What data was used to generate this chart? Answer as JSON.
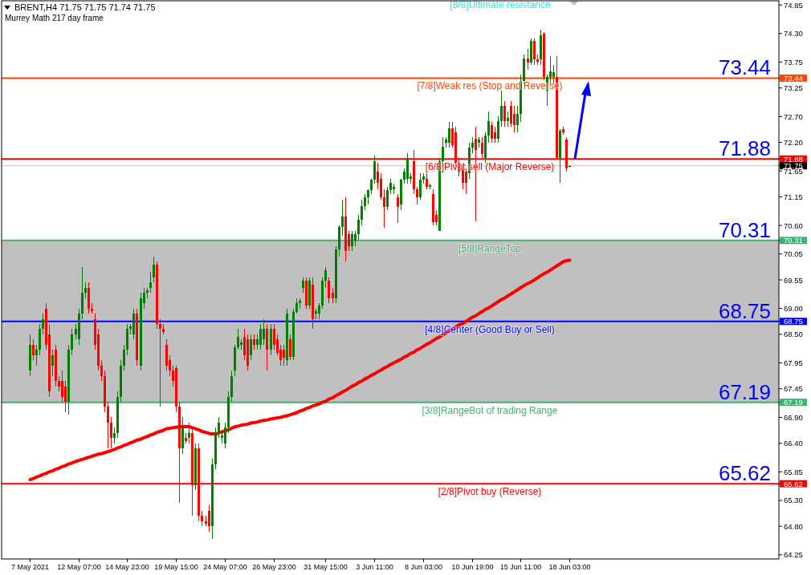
{
  "chart_data": {
    "type": "candlestick",
    "title": "BRENT,H4 71.75 71.75 71.74 71.75",
    "subtitle": "Murrey Math 217 day frame",
    "categories": [
      "7 May 2021",
      null,
      null,
      null,
      null,
      null,
      null,
      null,
      null,
      null,
      null,
      null,
      null,
      null,
      null,
      "12 May 07:00",
      null,
      null,
      null,
      null,
      null,
      null,
      null,
      null,
      null,
      null,
      null,
      null,
      null,
      null,
      "14 May 23:00",
      null,
      null,
      null,
      null,
      null,
      null,
      null,
      null,
      null,
      null,
      null,
      null,
      null,
      null,
      "19 May 15:00",
      null,
      null,
      null,
      null,
      null,
      null,
      null,
      null,
      null,
      null,
      null,
      null,
      null,
      null,
      "24 May 07:00",
      null,
      null,
      null,
      null,
      null,
      null,
      null,
      null,
      null,
      null,
      null,
      null,
      null,
      null,
      "26 May 23:00",
      null,
      null,
      null,
      null,
      null,
      null,
      null,
      null,
      null,
      null,
      null,
      null,
      null,
      null,
      null,
      "31 May 15:00",
      null,
      null,
      null,
      null,
      null,
      null,
      null,
      null,
      null,
      null,
      null,
      null,
      null,
      null,
      "3 Jun 11:00",
      null,
      null,
      null,
      null,
      null,
      null,
      null,
      null,
      null,
      null,
      null,
      null,
      null,
      null,
      "8 Jun 03:00",
      null,
      null,
      null,
      null,
      null,
      null,
      null,
      null,
      null,
      null,
      null,
      null,
      null,
      null,
      "10 Jun 19:00",
      null,
      null,
      null,
      null,
      null,
      null,
      null,
      null,
      null,
      null,
      null,
      null,
      null,
      null,
      "15 Jun 11:00",
      null,
      null,
      null,
      null,
      null,
      null,
      null,
      null,
      null,
      null,
      null,
      null,
      null,
      null,
      "18 Jun 03:00"
    ],
    "ohlc": [
      [
        67.8,
        68.5,
        67.7,
        68.3
      ],
      [
        68.3,
        68.4,
        68.0,
        68.1
      ],
      [
        68.1,
        68.3,
        67.9,
        68.2
      ],
      [
        68.2,
        68.7,
        68.1,
        68.6
      ],
      [
        68.6,
        68.9,
        68.5,
        68.8
      ],
      [
        69.0,
        69.1,
        68.2,
        68.3
      ],
      [
        68.5,
        68.7,
        67.3,
        67.4
      ],
      [
        67.9,
        68.2,
        67.7,
        68.1
      ],
      [
        68.2,
        68.3,
        67.5,
        67.6
      ],
      [
        67.6,
        67.7,
        67.4,
        67.5
      ],
      [
        67.6,
        67.8,
        67.2,
        67.3
      ],
      [
        67.5,
        67.6,
        67.0,
        67.2
      ],
      [
        67.2,
        68.3,
        66.95,
        68.2
      ],
      [
        68.2,
        68.6,
        68.1,
        68.5
      ],
      [
        68.5,
        68.7,
        68.4,
        68.6
      ],
      [
        68.4,
        69.0,
        68.3,
        68.9
      ],
      [
        68.9,
        69.8,
        68.8,
        69.3
      ],
      [
        69.3,
        69.5,
        69.2,
        69.4
      ],
      [
        69.4,
        69.5,
        68.9,
        69.0
      ],
      [
        69.0,
        69.1,
        68.9,
        68.95
      ],
      [
        68.8,
        68.9,
        68.2,
        68.3
      ],
      [
        68.5,
        68.6,
        67.8,
        67.9
      ],
      [
        67.9,
        68.0,
        67.6,
        67.7
      ],
      [
        67.7,
        67.8,
        67.0,
        67.1
      ],
      [
        67.1,
        67.2,
        66.3,
        66.8
      ],
      [
        66.8,
        66.9,
        66.3,
        66.5
      ],
      [
        66.5,
        66.7,
        66.4,
        66.6
      ],
      [
        66.6,
        67.4,
        66.5,
        67.3
      ],
      [
        67.3,
        68.0,
        67.2,
        67.9
      ],
      [
        67.9,
        68.3,
        67.8,
        68.2
      ],
      [
        68.2,
        68.7,
        68.1,
        68.6
      ],
      [
        68.6,
        68.7,
        68.5,
        68.65
      ],
      [
        68.5,
        69.0,
        68.4,
        68.9
      ],
      [
        68.9,
        69.0,
        67.9,
        68.0
      ],
      [
        67.9,
        69.3,
        67.8,
        69.2
      ],
      [
        69.1,
        69.4,
        69.0,
        69.3
      ],
      [
        69.3,
        69.4,
        69.2,
        69.35
      ],
      [
        69.4,
        69.7,
        69.3,
        69.5
      ],
      [
        69.6,
        70.0,
        69.5,
        69.85
      ],
      [
        69.85,
        69.9,
        68.6,
        68.7
      ],
      [
        68.7,
        68.8,
        67.1,
        68.6
      ],
      [
        68.6,
        68.7,
        68.5,
        68.55
      ],
      [
        68.3,
        68.4,
        67.8,
        67.9
      ],
      [
        68.0,
        68.1,
        67.7,
        67.8
      ],
      [
        67.8,
        67.9,
        67.5,
        67.6
      ],
      [
        67.85,
        67.9,
        67.0,
        67.1
      ],
      [
        67.1,
        67.2,
        65.25,
        66.3
      ],
      [
        66.3,
        66.9,
        66.2,
        66.7
      ],
      [
        66.5,
        66.6,
        66.4,
        66.45
      ],
      [
        66.5,
        66.8,
        66.4,
        66.6
      ],
      [
        66.6,
        66.7,
        65.0,
        65.6
      ],
      [
        65.6,
        66.4,
        65.5,
        66.3
      ],
      [
        66.3,
        66.4,
        64.9,
        65.0
      ],
      [
        65.0,
        65.1,
        64.8,
        64.9
      ],
      [
        64.9,
        65.0,
        64.8,
        64.85
      ],
      [
        65.1,
        65.2,
        64.7,
        64.8
      ],
      [
        64.8,
        66.1,
        64.55,
        66.0
      ],
      [
        66.0,
        66.7,
        65.9,
        66.6
      ],
      [
        66.6,
        66.9,
        66.5,
        66.8
      ],
      [
        66.5,
        66.6,
        66.4,
        66.55
      ],
      [
        66.4,
        66.8,
        66.3,
        66.7
      ],
      [
        66.7,
        67.4,
        66.6,
        67.3
      ],
      [
        67.3,
        67.8,
        67.2,
        67.7
      ],
      [
        67.8,
        68.3,
        67.7,
        68.25
      ],
      [
        68.25,
        68.6,
        68.2,
        68.45
      ],
      [
        68.3,
        68.4,
        68.2,
        68.35
      ],
      [
        68.45,
        68.6,
        68.0,
        68.1
      ],
      [
        68.4,
        68.5,
        67.8,
        67.9
      ],
      [
        68.1,
        68.5,
        68.0,
        68.4
      ],
      [
        68.4,
        68.5,
        68.2,
        68.3
      ],
      [
        68.3,
        68.5,
        68.2,
        68.4
      ],
      [
        68.3,
        68.7,
        68.2,
        68.6
      ],
      [
        68.4,
        68.8,
        68.3,
        68.6
      ],
      [
        68.6,
        68.7,
        67.8,
        68.2
      ],
      [
        68.2,
        68.7,
        68.1,
        68.6
      ],
      [
        68.6,
        68.7,
        68.2,
        68.3
      ],
      [
        68.4,
        68.5,
        68.1,
        68.15
      ],
      [
        68.2,
        68.3,
        67.9,
        68.0
      ],
      [
        68.2,
        68.3,
        67.9,
        68.05
      ],
      [
        68.0,
        69.0,
        67.9,
        68.9
      ],
      [
        68.4,
        68.5,
        68.0,
        68.06
      ],
      [
        68.06,
        69.0,
        68.0,
        68.93
      ],
      [
        68.93,
        69.2,
        68.9,
        69.1
      ],
      [
        69.1,
        69.2,
        69.0,
        69.15
      ],
      [
        69.39,
        69.6,
        69.3,
        69.53
      ],
      [
        69.53,
        69.6,
        69.0,
        69.06
      ],
      [
        69.06,
        69.6,
        69.0,
        69.53
      ],
      [
        69.45,
        69.6,
        68.6,
        68.8
      ],
      [
        68.9,
        69.0,
        68.8,
        68.95
      ],
      [
        68.9,
        69.1,
        68.8,
        69.06
      ],
      [
        69.06,
        69.6,
        69.0,
        69.53
      ],
      [
        69.53,
        69.8,
        69.4,
        69.74
      ],
      [
        69.53,
        69.6,
        69.1,
        69.2
      ],
      [
        69.3,
        69.4,
        69.1,
        69.2
      ],
      [
        69.2,
        70.2,
        69.1,
        70.14
      ],
      [
        70.14,
        70.6,
        70.0,
        70.57
      ],
      [
        70.57,
        71.1,
        70.4,
        70.77
      ],
      [
        70.77,
        71.15,
        69.9,
        70.1
      ],
      [
        70.43,
        70.5,
        70.1,
        70.2
      ],
      [
        70.2,
        70.5,
        70.1,
        70.43
      ],
      [
        70.3,
        70.5,
        70.2,
        70.43
      ],
      [
        70.43,
        70.8,
        70.3,
        70.71
      ],
      [
        70.71,
        71.1,
        70.6,
        70.98
      ],
      [
        70.98,
        71.2,
        70.9,
        71.15
      ],
      [
        71.15,
        71.3,
        71.0,
        71.28
      ],
      [
        71.28,
        71.5,
        71.2,
        71.48
      ],
      [
        71.48,
        71.95,
        71.4,
        71.84
      ],
      [
        71.63,
        71.8,
        71.3,
        71.42
      ],
      [
        71.5,
        71.6,
        71.1,
        71.15
      ],
      [
        71.15,
        71.3,
        70.55,
        70.95
      ],
      [
        70.95,
        71.35,
        70.9,
        71.28
      ],
      [
        71.28,
        71.5,
        71.2,
        71.42
      ],
      [
        71.3,
        71.4,
        71.2,
        71.35
      ],
      [
        71.15,
        71.2,
        70.65,
        70.95
      ],
      [
        71.0,
        71.5,
        70.9,
        71.48
      ],
      [
        71.48,
        71.7,
        71.4,
        71.63
      ],
      [
        71.5,
        72.0,
        71.4,
        71.9
      ],
      [
        71.5,
        71.6,
        71.4,
        71.55
      ],
      [
        71.84,
        72.05,
        71.2,
        71.3
      ],
      [
        71.3,
        71.35,
        71.0,
        71.15
      ],
      [
        71.15,
        71.6,
        71.1,
        71.48
      ],
      [
        71.48,
        71.6,
        71.4,
        71.55
      ],
      [
        71.5,
        71.6,
        71.3,
        71.35
      ],
      [
        71.35,
        71.4,
        71.3,
        71.37
      ],
      [
        71.21,
        71.3,
        70.6,
        70.66
      ],
      [
        70.8,
        70.9,
        70.6,
        70.66
      ],
      [
        70.5,
        71.9,
        70.5,
        71.84
      ],
      [
        71.84,
        72.3,
        71.8,
        72.12
      ],
      [
        72.2,
        72.3,
        72.1,
        72.25
      ],
      [
        72.19,
        72.6,
        72.1,
        72.47
      ],
      [
        72.47,
        72.6,
        72.1,
        72.15
      ],
      [
        72.4,
        72.5,
        71.7,
        71.8
      ],
      [
        71.8,
        71.9,
        71.55,
        71.63
      ],
      [
        71.7,
        71.8,
        71.3,
        71.42
      ],
      [
        71.63,
        71.7,
        71.2,
        71.42
      ],
      [
        71.6,
        72.2,
        71.5,
        72.1
      ],
      [
        72.1,
        72.3,
        72.0,
        72.2
      ],
      [
        72.27,
        72.5,
        70.68,
        72.06
      ],
      [
        72.2,
        72.3,
        72.1,
        72.25
      ],
      [
        72.2,
        72.3,
        71.9,
        71.98
      ],
      [
        71.9,
        72.4,
        71.8,
        72.33
      ],
      [
        72.33,
        72.8,
        72.2,
        72.61
      ],
      [
        72.54,
        72.6,
        72.2,
        72.27
      ],
      [
        72.4,
        72.5,
        72.2,
        72.27
      ],
      [
        72.27,
        72.7,
        72.2,
        72.61
      ],
      [
        72.61,
        73.2,
        72.5,
        72.9
      ],
      [
        72.9,
        73.0,
        72.5,
        72.61
      ],
      [
        72.61,
        72.8,
        72.5,
        72.68
      ],
      [
        72.9,
        73.0,
        72.5,
        72.57
      ],
      [
        72.75,
        72.9,
        72.4,
        72.54
      ],
      [
        72.54,
        72.9,
        72.4,
        72.75
      ],
      [
        72.75,
        73.5,
        72.6,
        73.39
      ],
      [
        73.39,
        73.9,
        73.3,
        73.81
      ],
      [
        73.81,
        74.0,
        73.6,
        73.74
      ],
      [
        73.74,
        74.2,
        73.7,
        74.16
      ],
      [
        74.16,
        74.2,
        73.7,
        73.8
      ],
      [
        73.8,
        73.9,
        73.7,
        73.75
      ],
      [
        73.8,
        74.37,
        73.7,
        74.26
      ],
      [
        74.29,
        74.33,
        73.4,
        73.46
      ],
      [
        73.2,
        73.5,
        72.9,
        73.46
      ],
      [
        73.46,
        73.87,
        73.3,
        73.57
      ],
      [
        73.46,
        73.7,
        73.3,
        73.55
      ],
      [
        73.46,
        73.87,
        71.9,
        71.9
      ],
      [
        71.9,
        72.45,
        71.42,
        72.43
      ],
      [
        72.45,
        72.5,
        72.35,
        72.4
      ],
      [
        72.25,
        72.3,
        71.63,
        71.7
      ],
      [
        71.75,
        71.75,
        71.74,
        71.75
      ]
    ],
    "series": [
      {
        "type": "line",
        "color": "#ff0000",
        "values": [
          65.7,
          65.72,
          65.75,
          65.77,
          65.8,
          65.82,
          65.85,
          65.87,
          65.9,
          65.92,
          65.95,
          65.97,
          66.0,
          66.02,
          66.05,
          66.07,
          66.09,
          66.11,
          66.13,
          66.15,
          66.17,
          66.19,
          66.2,
          66.22,
          66.24,
          66.26,
          66.28,
          66.31,
          66.33,
          66.36,
          66.38,
          66.41,
          66.43,
          66.46,
          66.48,
          66.51,
          66.53,
          66.56,
          66.58,
          66.61,
          66.63,
          66.65,
          66.68,
          66.69,
          66.7,
          66.71,
          66.72,
          66.72,
          66.72,
          66.72,
          66.7,
          66.68,
          66.66,
          66.63,
          66.61,
          66.59,
          66.58,
          66.58,
          66.6,
          66.62,
          66.64,
          66.66,
          66.69,
          66.72,
          66.73,
          66.75,
          66.76,
          66.77,
          66.79,
          66.8,
          66.81,
          66.83,
          66.84,
          66.85,
          66.87,
          66.88,
          66.89,
          66.9,
          66.92,
          66.93,
          66.95,
          66.97,
          66.99,
          67.02,
          67.04,
          67.07,
          67.09,
          67.12,
          67.14,
          67.16,
          67.19,
          67.21,
          67.25,
          67.28,
          67.32,
          67.35,
          67.39,
          67.42,
          67.46,
          67.5,
          67.53,
          67.57,
          67.6,
          67.64,
          67.67,
          67.71,
          67.74,
          67.78,
          67.81,
          67.85,
          67.88,
          67.92,
          67.95,
          67.99,
          68.02,
          68.06,
          68.09,
          68.13,
          68.16,
          68.2,
          68.23,
          68.27,
          68.31,
          68.34,
          68.38,
          68.42,
          68.45,
          68.49,
          68.53,
          68.57,
          68.6,
          68.64,
          68.68,
          68.71,
          68.75,
          68.79,
          68.83,
          68.86,
          68.9,
          68.94,
          68.98,
          69.01,
          69.05,
          69.09,
          69.13,
          69.17,
          69.2,
          69.24,
          69.28,
          69.32,
          69.36,
          69.4,
          69.44,
          69.48,
          69.51,
          69.55,
          69.59,
          69.63,
          69.67,
          69.7,
          69.74,
          69.78,
          69.82,
          69.86,
          69.9,
          69.92,
          69.93
        ]
      }
    ],
    "ylim": [
      64.17,
      74.93
    ],
    "annotations": [
      "[8/8]Ultimate resistance",
      {
        "text": "73.44",
        "y": 73.44
      },
      {
        "text": "71.88",
        "y": 71.88
      },
      {
        "text": "70.31",
        "y": 70.31
      },
      {
        "text": "68.75",
        "y": 68.75
      },
      {
        "text": "67.19",
        "y": 67.19
      },
      {
        "text": "65.62",
        "y": 65.62
      }
    ],
    "yticks": [
      74.85,
      {
        "value": 74.3,
        "label": "74.30"
      },
      73.75,
      {
        "value": 73.44,
        "label": "73.44"
      },
      73.25,
      {
        "value": 72.7,
        "label": "72.70"
      },
      {
        "value": 72.2,
        "label": "72.20"
      },
      {
        "value": 71.88,
        "label": "71.88"
      },
      {
        "value": 71.75,
        "label": "71.75"
      },
      71.65,
      71.15,
      {
        "value": 70.6,
        "label": "70.60"
      },
      {
        "value": 70.31,
        "label": "70.31"
      },
      70.05,
      69.55,
      {
        "value": 69,
        "label": "69.00"
      },
      {
        "value": 68.75,
        "label": "68.75"
      },
      {
        "value": 68.5,
        "label": "68.50"
      },
      67.95,
      67.45,
      {
        "value": 67.19,
        "label": "67.19"
      },
      {
        "value": 66.9,
        "label": "66.90"
      },
      {
        "value": 66.4,
        "label": "66.40"
      },
      65.85,
      {
        "value": 65.62,
        "label": "65.62"
      },
      {
        "value": 65.3,
        "label": "65.30"
      },
      {
        "value": 64.8,
        "label": "64.80"
      },
      64.25
    ],
    "bands": [
      {
        "axis": "y",
        "from": 67.19,
        "to": 70.31,
        "color": "#c0c0c0"
      }
    ],
    "ref_lines": [
      {
        "axis": "y",
        "value": 73.44,
        "label": "[7/8]Weak res (Stop and Reverse)",
        "color": "#ff4500"
      },
      {
        "axis": "y",
        "value": 71.88,
        "label": "[6/8]Pivot sell (Major Reverse)",
        "color": "#ff0000"
      },
      {
        "axis": "y",
        "value": 71.75,
        "color": "#c0c0c0"
      },
      {
        "axis": "y",
        "value": 70.31,
        "label": "[5/8]RangeTop",
        "color": "#3cb371"
      },
      {
        "axis": "y",
        "value": 68.75,
        "label": "[4/8]Center (Good Buy or Sell)",
        "color": "#0000ff"
      },
      {
        "axis": "y",
        "value": 67.19,
        "label": "[3/8]RangeBot of trading Range",
        "color": "#3cb371"
      },
      {
        "axis": "y",
        "value": 65.62,
        "label": "[2/8]Pivot buy (Reverse)",
        "color": "#ff0000"
      }
    ]
  }
}
